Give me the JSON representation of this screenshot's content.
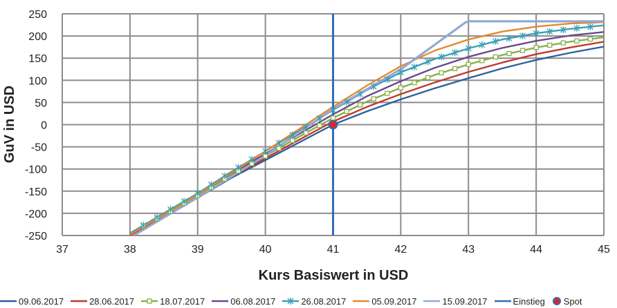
{
  "chart_data": {
    "type": "line",
    "xlabel": "Kurs Basiswert in USD",
    "ylabel": "GuV in USD",
    "xlim": [
      37,
      45
    ],
    "ylim": [
      -250,
      250
    ],
    "x_ticks": [
      "37",
      "38",
      "39",
      "40",
      "41",
      "42",
      "43",
      "44",
      "45"
    ],
    "y_ticks": [
      "250",
      "200",
      "150",
      "100",
      "50",
      "0",
      "-50",
      "-100",
      "-150",
      "-200",
      "-250"
    ],
    "grid": true,
    "legend_position": "bottom",
    "series": [
      {
        "name": "09.06.2017",
        "color": "#2e5f9e",
        "marker": "none",
        "x": [
          38.0,
          38.5,
          39.0,
          39.5,
          40.0,
          40.5,
          41.0,
          41.5,
          42.0,
          42.5,
          43.0,
          43.5,
          44.0,
          44.5,
          45.0
        ],
        "y": [
          -250,
          -210,
          -165,
          -120,
          -80,
          -40,
          0,
          30,
          57,
          82,
          105,
          127,
          146,
          162,
          176
        ]
      },
      {
        "name": "28.06.2017",
        "color": "#c0392b",
        "marker": "none",
        "x": [
          38.0,
          38.5,
          39.0,
          39.5,
          40.0,
          40.5,
          41.0,
          41.5,
          42.0,
          42.5,
          43.0,
          43.5,
          44.0,
          44.5,
          45.0
        ],
        "y": [
          -250,
          -208,
          -163,
          -117,
          -76,
          -34,
          7,
          40,
          69,
          95,
          119,
          140,
          159,
          174,
          187
        ]
      },
      {
        "name": "18.07.2017",
        "color": "#8ab04a",
        "marker": "square",
        "x": [
          38.0,
          38.5,
          39.0,
          39.5,
          40.0,
          40.5,
          41.0,
          41.5,
          42.0,
          42.5,
          43.0,
          43.5,
          44.0,
          44.5,
          45.0
        ],
        "y": [
          -245,
          -204,
          -160,
          -113,
          -71,
          -27,
          15,
          52,
          83,
          112,
          136,
          157,
          174,
          187,
          197
        ]
      },
      {
        "name": "06.08.2017",
        "color": "#6b4a8a",
        "marker": "none",
        "x": [
          38.0,
          38.5,
          39.0,
          39.5,
          40.0,
          40.5,
          41.0,
          41.5,
          42.0,
          42.5,
          43.0,
          43.5,
          44.0,
          44.5,
          45.0
        ],
        "y": [
          -245,
          -203,
          -158,
          -110,
          -66,
          -21,
          23,
          64,
          98,
          128,
          153,
          173,
          189,
          201,
          209
        ]
      },
      {
        "name": "26.08.2017",
        "color": "#3a9fb5",
        "marker": "star",
        "x": [
          38.0,
          38.5,
          39.0,
          39.5,
          40.0,
          40.5,
          41.0,
          41.5,
          42.0,
          42.5,
          43.0,
          43.5,
          44.0,
          44.5,
          45.0
        ],
        "y": [
          -245,
          -200,
          -155,
          -106,
          -60,
          -14,
          33,
          78,
          118,
          148,
          172,
          192,
          206,
          216,
          224
        ]
      },
      {
        "name": "05.09.2017",
        "color": "#e6882e",
        "marker": "none",
        "x": [
          38.0,
          38.5,
          39.0,
          39.5,
          40.0,
          40.5,
          41.0,
          41.5,
          42.0,
          42.5,
          43.0,
          43.5,
          44.0,
          44.5,
          45.0
        ],
        "y": [
          -248,
          -203,
          -158,
          -109,
          -60,
          -10,
          40,
          88,
          132,
          167,
          192,
          210,
          221,
          228,
          231
        ]
      },
      {
        "name": "15.09.2017",
        "color": "#93a9d4",
        "marker": "none",
        "x": [
          38.0,
          39.0,
          40.0,
          41.0,
          42.0,
          42.5,
          42.95,
          43.0,
          45.0
        ],
        "y": [
          -255,
          -164,
          -70,
          35,
          125,
          180,
          230,
          233,
          233
        ]
      },
      {
        "name": "Einstieg",
        "color": "#2e6fb5",
        "marker": "none",
        "vline_x": 41
      },
      {
        "name": "Spot",
        "color": "#d9262b",
        "marker": "dot",
        "x": [
          41.0
        ],
        "y": [
          0
        ]
      }
    ]
  }
}
